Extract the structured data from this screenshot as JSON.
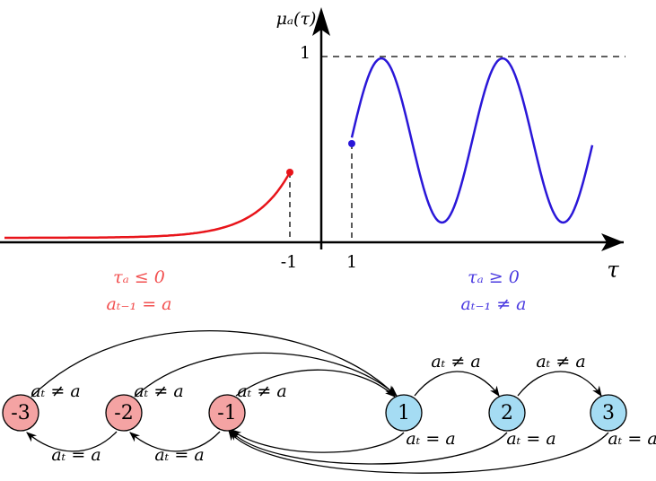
{
  "plot": {
    "y_label": "μₐ(τ)",
    "y_tick": "1",
    "x_ticks": [
      "-1",
      "1"
    ],
    "x_label": "τ",
    "left_labels": [
      "τₐ ≤ 0",
      "aₜ₋₁ = a"
    ],
    "right_labels": [
      "τₐ ≥ 0",
      "aₜ₋₁ ≠ a"
    ]
  },
  "nodes": [
    {
      "label": "-3"
    },
    {
      "label": "-2"
    },
    {
      "label": "-1"
    },
    {
      "label": "1"
    },
    {
      "label": "2"
    },
    {
      "label": "3"
    }
  ],
  "edges": [
    {
      "label": "aₜ ≠ a"
    },
    {
      "label": "aₜ ≠ a"
    },
    {
      "label": "aₜ ≠ a"
    },
    {
      "label": "aₜ ≠ a"
    },
    {
      "label": "aₜ ≠ a"
    },
    {
      "label": "aₜ = a"
    },
    {
      "label": "aₜ = a"
    },
    {
      "label": "aₜ = a"
    },
    {
      "label": "aₜ = a"
    },
    {
      "label": "aₜ = a"
    }
  ]
}
